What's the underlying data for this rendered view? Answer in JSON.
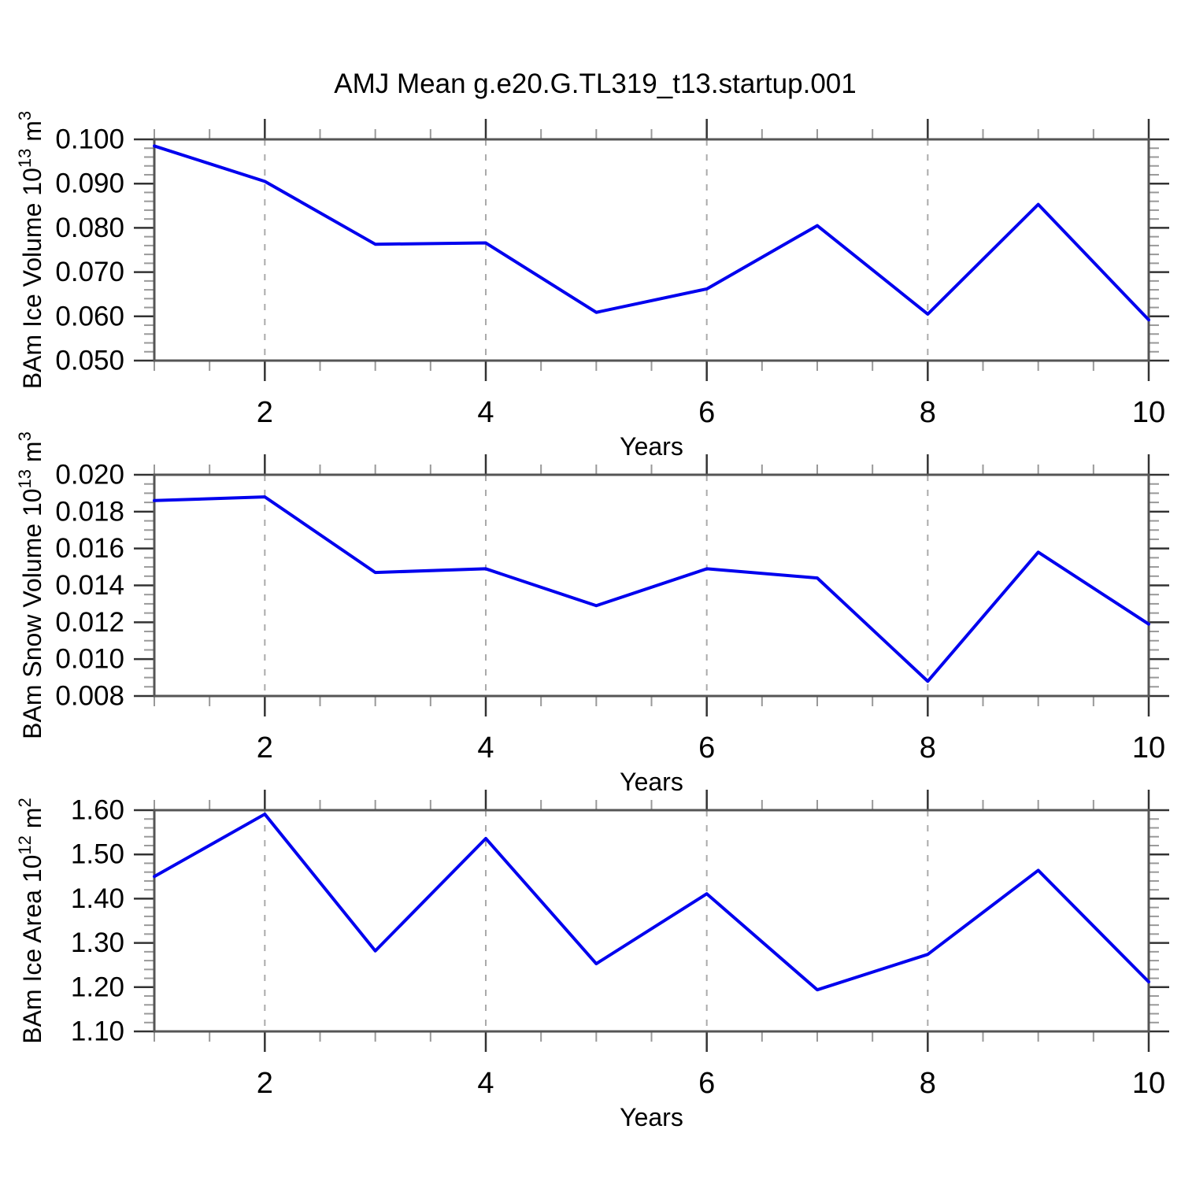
{
  "title": "AMJ Mean g.e20.G.TL319_t13.startup.001",
  "colors": {
    "background": "#ffffff",
    "series_line": "#0000ee",
    "frame": "#555555",
    "major_tick": "#333333",
    "minor_tick": "#999999",
    "grid_dash": "#aaaaaa",
    "text": "#000000"
  },
  "chart_data": [
    {
      "type": "line",
      "name": "ice-volume",
      "ylabel_plain": "BAm Ice Volume 10^13 m^3",
      "ylabel_parts": [
        {
          "t": "BAm Ice Volume 10"
        },
        {
          "t": "13",
          "sup": true
        },
        {
          "t": " m"
        },
        {
          "t": "3",
          "sup": true
        }
      ],
      "xlabel": "Years",
      "x": [
        1,
        2,
        3,
        4,
        5,
        6,
        7,
        8,
        9,
        10
      ],
      "values": [
        0.0985,
        0.0905,
        0.0763,
        0.0766,
        0.0609,
        0.0662,
        0.0805,
        0.0605,
        0.0853,
        0.0592
      ],
      "xlim": [
        1,
        10
      ],
      "ylim": [
        0.05,
        0.1
      ],
      "ytick_major": 0.01,
      "ytick_minor": 0.002,
      "ytick_decimals": 3,
      "ytick_labels": [
        "0.050",
        "0.060",
        "0.070",
        "0.080",
        "0.090",
        "0.100"
      ],
      "xticks_labeled": [
        2,
        4,
        6,
        8,
        10
      ],
      "xtick_minor": 0.5,
      "grid_x": [
        2,
        4,
        6,
        8
      ],
      "grid": "vertical-dashed",
      "legend": "none"
    },
    {
      "type": "line",
      "name": "snow-volume",
      "ylabel_plain": "BAm Snow Volume 10^13 m^3",
      "ylabel_parts": [
        {
          "t": "BAm Snow Volume 10"
        },
        {
          "t": "13",
          "sup": true
        },
        {
          "t": " m"
        },
        {
          "t": "3",
          "sup": true
        }
      ],
      "xlabel": "Years",
      "x": [
        1,
        2,
        3,
        4,
        5,
        6,
        7,
        8,
        9,
        10
      ],
      "values": [
        0.0186,
        0.0188,
        0.0147,
        0.0149,
        0.0129,
        0.0149,
        0.0144,
        0.0088,
        0.0158,
        0.0119
      ],
      "xlim": [
        1,
        10
      ],
      "ylim": [
        0.008,
        0.02
      ],
      "ytick_major": 0.002,
      "ytick_minor": 0.0005,
      "ytick_decimals": 3,
      "ytick_labels": [
        "0.008",
        "0.010",
        "0.012",
        "0.014",
        "0.016",
        "0.018",
        "0.020"
      ],
      "xticks_labeled": [
        2,
        4,
        6,
        8,
        10
      ],
      "xtick_minor": 0.5,
      "grid_x": [
        2,
        4,
        6,
        8
      ],
      "grid": "vertical-dashed",
      "legend": "none"
    },
    {
      "type": "line",
      "name": "ice-area",
      "ylabel_plain": "BAm Ice Area 10^12 m^2",
      "ylabel_parts": [
        {
          "t": "BAm Ice Area 10"
        },
        {
          "t": "12",
          "sup": true
        },
        {
          "t": " m"
        },
        {
          "t": "2",
          "sup": true
        }
      ],
      "xlabel": "Years",
      "x": [
        1,
        2,
        3,
        4,
        5,
        6,
        7,
        8,
        9,
        10
      ],
      "values": [
        1.45,
        1.591,
        1.282,
        1.536,
        1.253,
        1.411,
        1.194,
        1.274,
        1.464,
        1.212
      ],
      "xlim": [
        1,
        10
      ],
      "ylim": [
        1.1,
        1.6
      ],
      "ytick_major": 0.1,
      "ytick_minor": 0.02,
      "ytick_decimals": 2,
      "ytick_labels": [
        "1.10",
        "1.20",
        "1.30",
        "1.40",
        "1.50",
        "1.60"
      ],
      "xticks_labeled": [
        2,
        4,
        6,
        8,
        10
      ],
      "xtick_minor": 0.5,
      "grid_x": [
        2,
        4,
        6,
        8
      ],
      "grid": "vertical-dashed",
      "legend": "none"
    }
  ]
}
